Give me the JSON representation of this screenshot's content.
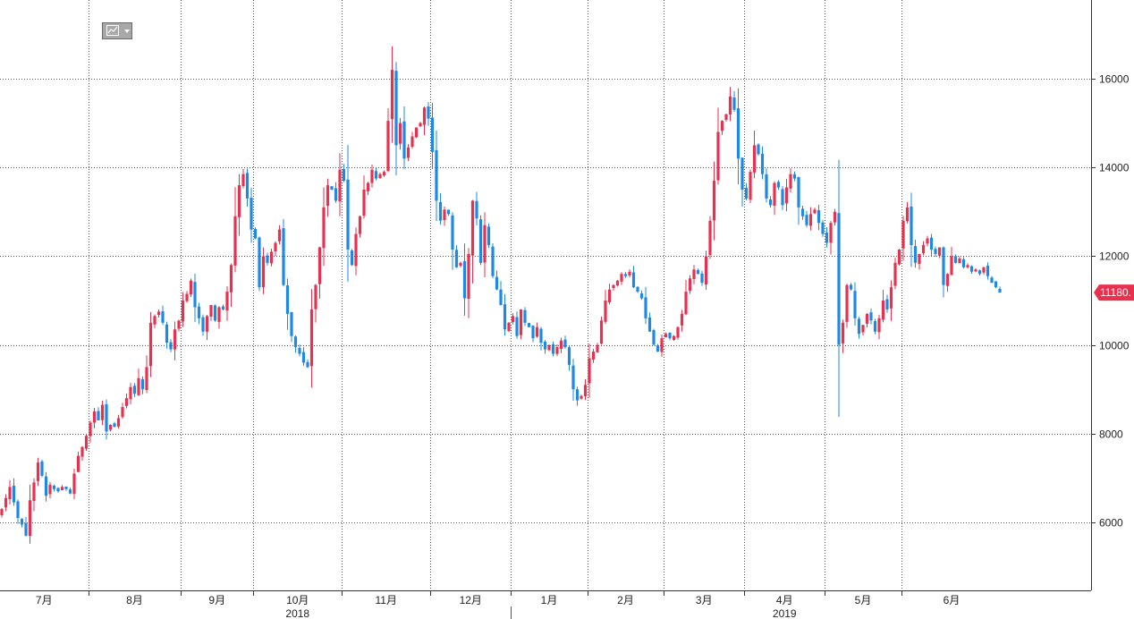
{
  "toolbar": {
    "icon": "chart-type-icon",
    "menu": "dropdown-arrow-icon"
  },
  "colors": {
    "up": "#e8304f",
    "down": "#1e88e5",
    "grid": "#555555",
    "price_tag": "#e8304f"
  },
  "price_tag": {
    "value": 11180,
    "label": "11180."
  },
  "chart_data": {
    "type": "candlestick",
    "title": "",
    "xlabel": "",
    "ylabel": "",
    "ylim": [
      4600,
      17600
    ],
    "yticks": [
      6000,
      8000,
      10000,
      12000,
      14000,
      16000
    ],
    "ytick_labels": [
      "6000",
      "8000",
      "10000",
      "12000",
      "14000",
      "16000"
    ],
    "grid": true,
    "months": [
      {
        "label": "7月",
        "start": 0
      },
      {
        "label": "8月",
        "start": 22
      },
      {
        "label": "9月",
        "start": 45
      },
      {
        "label": "10月",
        "start": 63
      },
      {
        "label": "11月",
        "start": 85
      },
      {
        "label": "12月",
        "start": 107
      },
      {
        "label": "1月",
        "start": 127
      },
      {
        "label": "2月",
        "start": 146
      },
      {
        "label": "3月",
        "start": 165
      },
      {
        "label": "4月",
        "start": 185
      },
      {
        "label": "5月",
        "start": 205
      },
      {
        "label": "6月",
        "start": 224
      }
    ],
    "years": [
      {
        "label": "2018",
        "month_index": 3
      },
      {
        "label": "2019",
        "month_index": 9
      }
    ],
    "closes": [
      6300,
      6550,
      6800,
      6450,
      6100,
      5950,
      5700,
      6500,
      6900,
      7350,
      7050,
      6600,
      6850,
      6750,
      6700,
      6800,
      6750,
      6650,
      7100,
      7500,
      7700,
      7950,
      8250,
      8500,
      8300,
      8650,
      8050,
      8200,
      8150,
      8350,
      8600,
      8800,
      9050,
      8900,
      9250,
      9000,
      9500,
      10500,
      10650,
      10750,
      10500,
      10050,
      9900,
      10350,
      10550,
      11000,
      11150,
      11450,
      10850,
      10600,
      10300,
      10650,
      10900,
      10550,
      10850,
      10800,
      11200,
      11800,
      12900,
      13600,
      13850,
      13300,
      12600,
      12400,
      11300,
      12000,
      11850,
      12100,
      12300,
      12600,
      11350,
      10700,
      10200,
      9950,
      9800,
      9600,
      9500,
      10800,
      11350,
      12200,
      13100,
      13600,
      13500,
      13250,
      13950,
      13700,
      12150,
      11800,
      12500,
      12900,
      13500,
      13650,
      13950,
      13750,
      13850,
      13900,
      15050,
      16200,
      14500,
      15000,
      14200,
      14450,
      14700,
      14900,
      15000,
      15350,
      15100,
      14350,
      13250,
      12800,
      13050,
      12950,
      12150,
      11750,
      11850,
      11050,
      12050,
      13250,
      12850,
      11850,
      12700,
      12250,
      11550,
      11250,
      10900,
      10350,
      10500,
      10650,
      10200,
      10800,
      10500,
      10400,
      10150,
      10400,
      10050,
      9900,
      10000,
      9800,
      9950,
      10100,
      9950,
      9550,
      9000,
      8750,
      8850,
      9100,
      9700,
      9850,
      10000,
      10550,
      11000,
      11250,
      11350,
      11450,
      11600,
      11550,
      11650,
      11300,
      11200,
      11050,
      10600,
      10300,
      10000,
      9850,
      10150,
      10250,
      10150,
      10200,
      10400,
      10700,
      11200,
      11500,
      11700,
      11600,
      11400,
      12000,
      12800,
      13700,
      14800,
      15050,
      15200,
      15600,
      15300,
      14200,
      13500,
      13300,
      13900,
      14500,
      14300,
      13850,
      13300,
      13150,
      13650,
      13550,
      13150,
      13550,
      13850,
      13750,
      13100,
      12900,
      12700,
      12950,
      13050,
      12750,
      12500,
      12300,
      12750,
      13000,
      10000,
      10500,
      11350,
      11250,
      10600,
      10250,
      10450,
      10700,
      10550,
      10300,
      10600,
      11000,
      10800,
      11300,
      11850,
      12150,
      12800,
      13100,
      12250,
      11850,
      12050,
      12250,
      12400,
      12150,
      12050,
      12200,
      11350,
      11600,
      12000,
      11850,
      11950,
      11750,
      11800,
      11650,
      11700,
      11600,
      11750,
      11550,
      11400,
      11300,
      11180
    ],
    "last_value": 11180
  }
}
